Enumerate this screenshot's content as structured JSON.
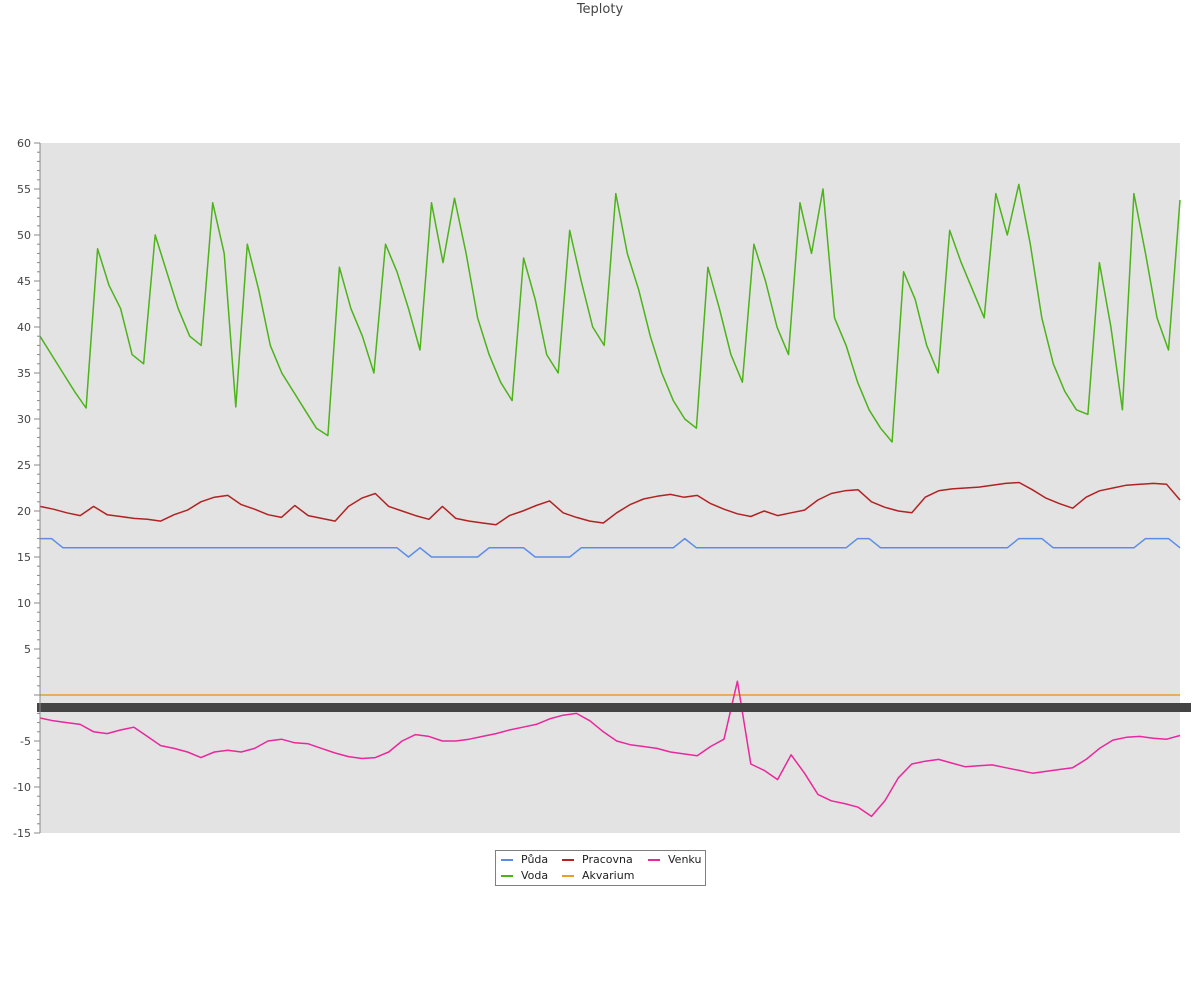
{
  "chart_data": {
    "type": "line",
    "title": "Teploty",
    "xlabel": "",
    "ylabel": "",
    "ylim": [
      -15,
      60
    ],
    "yticks": [
      -15,
      -10,
      -5,
      5,
      10,
      15,
      20,
      25,
      30,
      35,
      40,
      45,
      50,
      55,
      60
    ],
    "grid": false,
    "legend_position": "bottom-center",
    "background": "#e3e3e3",
    "zero_band_color": "#444444",
    "n_points": 100,
    "series": [
      {
        "name": "Půda",
        "color": "#5b8de8",
        "values": [
          17,
          17,
          16,
          16,
          16,
          16,
          16,
          16,
          16,
          16,
          16,
          16,
          16,
          16,
          16,
          16,
          16,
          16,
          16,
          16,
          16,
          16,
          16,
          16,
          16,
          16,
          16,
          16,
          16,
          16,
          16,
          16,
          15,
          16,
          15,
          15,
          15,
          15,
          15,
          16,
          16,
          16,
          16,
          15,
          15,
          15,
          15,
          16,
          16,
          16,
          16,
          16,
          16,
          16,
          16,
          16,
          17,
          16,
          16,
          16,
          16,
          16,
          16,
          16,
          16,
          16,
          16,
          16,
          16,
          16,
          16,
          17,
          17,
          16,
          16,
          16,
          16,
          16,
          16,
          16,
          16,
          16,
          16,
          16,
          16,
          17,
          17,
          17,
          16,
          16,
          16,
          16,
          16,
          16,
          16,
          16,
          17,
          17,
          17,
          16
        ]
      },
      {
        "name": "Voda",
        "color": "#4cb319",
        "values": [
          39,
          37,
          35,
          33,
          31.2,
          48.5,
          44.5,
          42,
          37,
          36,
          50,
          46,
          42,
          39,
          38,
          53.5,
          48,
          31.3,
          49,
          44,
          38,
          35,
          33,
          31,
          29,
          28.2,
          46.5,
          42,
          39,
          35,
          49,
          46,
          42,
          37.5,
          53.5,
          47,
          54,
          48,
          41,
          37,
          34,
          32,
          47.5,
          43,
          37,
          35,
          50.5,
          45,
          40,
          38,
          54.5,
          48,
          44,
          39,
          35,
          32,
          30,
          29,
          46.5,
          42,
          37,
          34,
          49,
          45,
          40,
          37,
          53.5,
          48,
          55,
          41,
          38,
          34,
          31,
          29,
          27.5,
          46,
          43,
          38,
          35,
          50.5,
          47,
          44,
          41,
          54.5,
          50,
          55.5,
          49,
          41,
          36,
          33,
          31,
          30.5,
          47,
          40,
          31,
          54.5,
          48,
          41,
          37.5,
          53.8
        ]
      },
      {
        "name": "Pracovna",
        "color": "#b22222",
        "values": [
          20.5,
          20.2,
          19.8,
          19.5,
          20.5,
          19.6,
          19.4,
          19.2,
          19.1,
          18.9,
          19.6,
          20.1,
          21,
          21.5,
          21.7,
          20.7,
          20.2,
          19.6,
          19.3,
          20.6,
          19.5,
          19.2,
          18.9,
          20.5,
          21.4,
          21.9,
          20.5,
          20,
          19.5,
          19.1,
          20.5,
          19.2,
          18.9,
          18.7,
          18.5,
          19.5,
          20,
          20.6,
          21.1,
          19.8,
          19.3,
          18.9,
          18.7,
          19.8,
          20.7,
          21.3,
          21.6,
          21.8,
          21.5,
          21.7,
          20.8,
          20.2,
          19.7,
          19.4,
          20,
          19.5,
          19.8,
          20.1,
          21.2,
          21.9,
          22.2,
          22.3,
          21,
          20.4,
          20,
          19.8,
          21.5,
          22.2,
          22.4,
          22.5,
          22.6,
          22.8,
          23,
          23.1,
          22.3,
          21.4,
          20.8,
          20.3,
          21.5,
          22.2,
          22.5,
          22.8,
          22.9,
          23,
          22.9,
          21.2
        ]
      },
      {
        "name": "Akvarium",
        "color": "#e8a02c",
        "values": [
          0,
          0,
          0,
          0,
          0,
          0,
          0,
          0,
          0,
          0,
          0,
          0,
          0,
          0,
          0,
          0,
          0,
          0,
          0,
          0,
          0,
          0,
          0,
          0,
          0,
          0,
          0,
          0,
          0,
          0,
          0,
          0,
          0,
          0,
          0,
          0,
          0,
          0,
          0,
          0,
          0,
          0,
          0,
          0,
          0,
          0,
          0,
          0,
          0,
          0,
          0,
          0,
          0,
          0,
          0,
          0,
          0,
          0,
          0,
          0,
          0,
          0,
          0,
          0,
          0,
          0,
          0,
          0,
          0,
          0,
          0,
          0,
          0,
          0,
          0,
          0,
          0,
          0,
          0,
          0,
          0,
          0,
          0,
          0,
          0,
          0,
          0,
          0,
          0,
          0,
          0,
          0,
          0,
          0,
          0,
          0,
          0,
          0,
          0,
          0
        ]
      },
      {
        "name": "Venku",
        "color": "#e8289c",
        "values": [
          -2.5,
          -2.8,
          -3,
          -3.2,
          -4,
          -4.2,
          -3.8,
          -3.5,
          -4.5,
          -5.5,
          -5.8,
          -6.2,
          -6.8,
          -6.2,
          -6,
          -6.2,
          -5.8,
          -5,
          -4.8,
          -5.2,
          -5.3,
          -5.8,
          -6.3,
          -6.7,
          -6.9,
          -6.8,
          -6.2,
          -5,
          -4.3,
          -4.5,
          -5,
          -5,
          -4.8,
          -4.5,
          -4.2,
          -3.8,
          -3.5,
          -3.2,
          -2.6,
          -2.2,
          -2,
          -2.8,
          -4,
          -5,
          -5.4,
          -5.6,
          -5.8,
          -6.2,
          -6.4,
          -6.6,
          -5.6,
          -4.8,
          1.5,
          -7.5,
          -8.2,
          -9.2,
          -6.5,
          -8.5,
          -10.8,
          -11.5,
          -11.8,
          -12.2,
          -13.2,
          -11.5,
          -9,
          -7.5,
          -7.2,
          -7,
          -7.4,
          -7.8,
          -7.7,
          -7.6,
          -7.9,
          -8.2,
          -8.5,
          -8.3,
          -8.1,
          -7.9,
          -7,
          -5.8,
          -4.9,
          -4.6,
          -4.5,
          -4.7,
          -4.8,
          -4.4
        ]
      }
    ]
  }
}
